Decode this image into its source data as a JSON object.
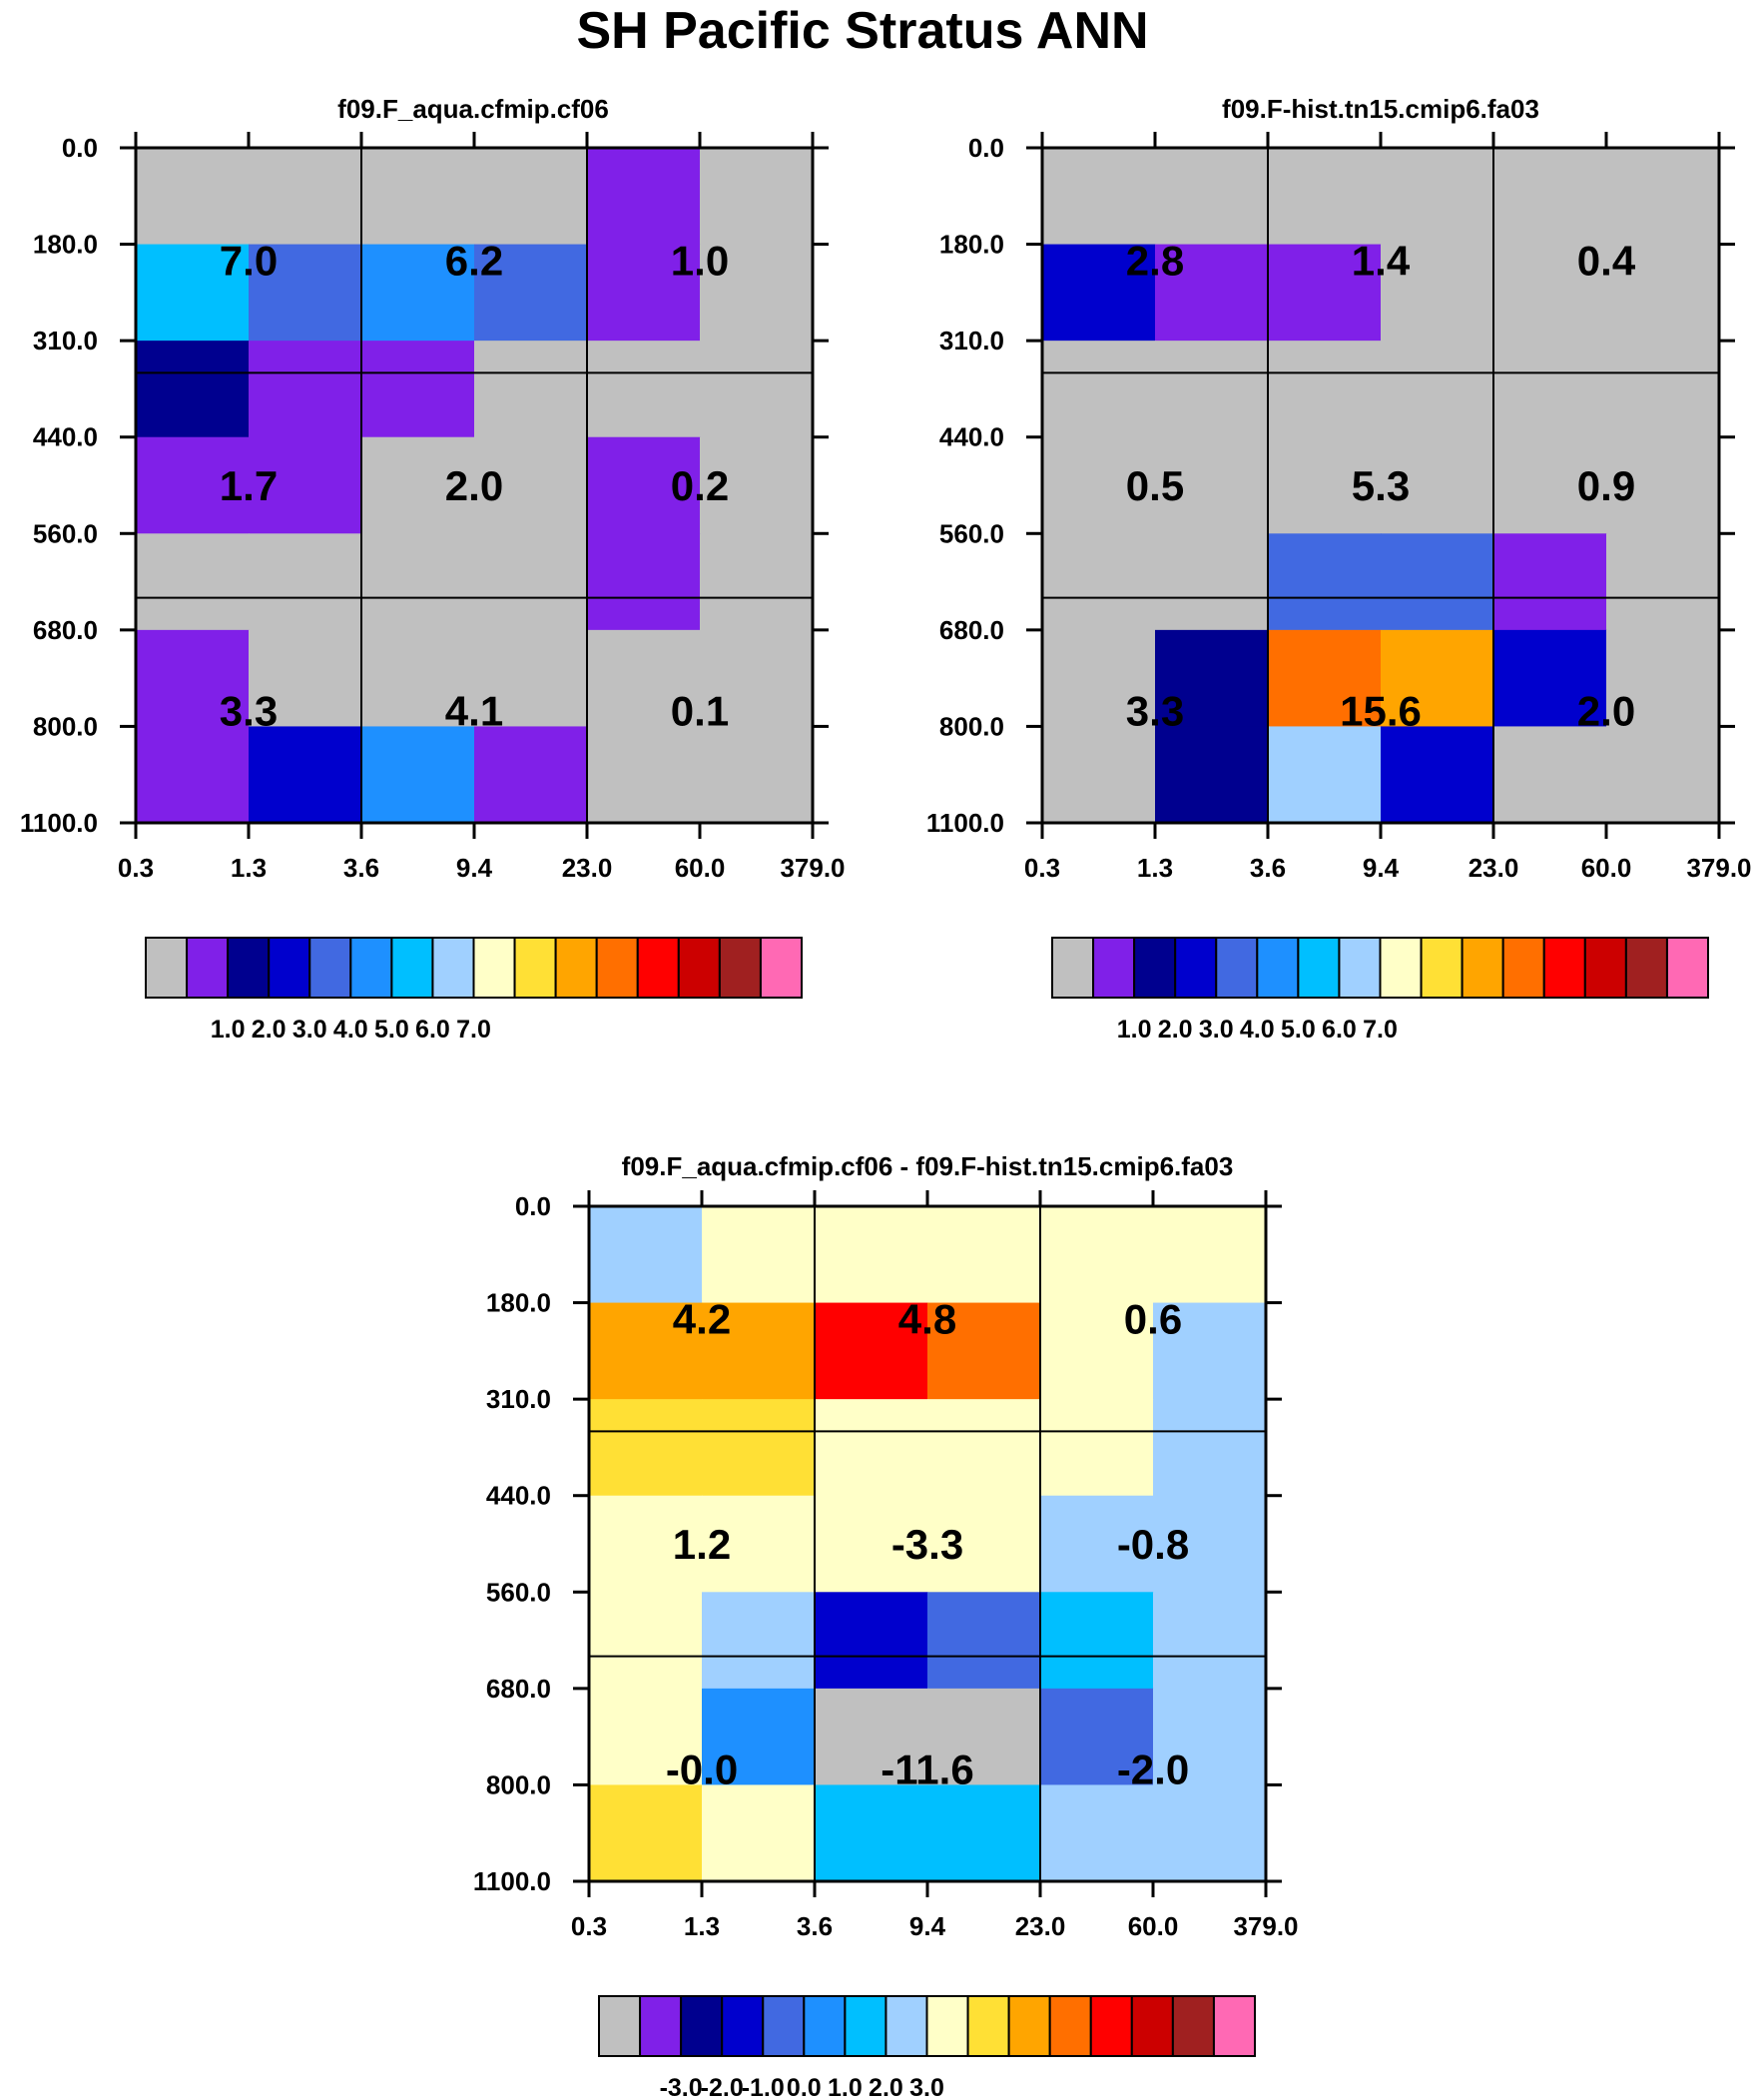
{
  "title": "SH Pacific Stratus ANN",
  "chart_data": [
    {
      "type": "heatmap",
      "title": "f09.F_aqua.cfmip.cf06",
      "x_ticks": [
        "0.3",
        "1.3",
        "3.6",
        "9.4",
        "23.0",
        "60.0",
        "379.0"
      ],
      "y_ticks": [
        "0.0",
        "180.0",
        "310.0",
        "440.0",
        "560.0",
        "680.0",
        "800.0",
        "1100.0"
      ],
      "color_index": [
        [
          0,
          0,
          0,
          0,
          1,
          0
        ],
        [
          6,
          4,
          5,
          4,
          1,
          0
        ],
        [
          2,
          1,
          1,
          0,
          0,
          0
        ],
        [
          1,
          1,
          0,
          0,
          1,
          0
        ],
        [
          0,
          0,
          0,
          0,
          1,
          0
        ],
        [
          1,
          0,
          0,
          0,
          0,
          0
        ],
        [
          1,
          3,
          5,
          1,
          0,
          0
        ]
      ],
      "box_values": [
        [
          "7.0",
          "6.2",
          "1.0"
        ],
        [
          "1.7",
          "2.0",
          "0.2"
        ],
        [
          "3.3",
          "4.1",
          "0.1"
        ]
      ]
    },
    {
      "type": "heatmap",
      "title": "f09.F-hist.tn15.cmip6.fa03",
      "x_ticks": [
        "0.3",
        "1.3",
        "3.6",
        "9.4",
        "23.0",
        "60.0",
        "379.0"
      ],
      "y_ticks": [
        "0.0",
        "180.0",
        "310.0",
        "440.0",
        "560.0",
        "680.0",
        "800.0",
        "1100.0"
      ],
      "color_index": [
        [
          0,
          0,
          0,
          0,
          0,
          0
        ],
        [
          3,
          1,
          1,
          0,
          0,
          0
        ],
        [
          0,
          0,
          0,
          0,
          0,
          0
        ],
        [
          0,
          0,
          0,
          0,
          0,
          0
        ],
        [
          0,
          0,
          4,
          4,
          1,
          0
        ],
        [
          0,
          2,
          11,
          10,
          3,
          0
        ],
        [
          0,
          2,
          7,
          3,
          0,
          0
        ]
      ],
      "box_values": [
        [
          "2.8",
          "1.4",
          "0.4"
        ],
        [
          "0.5",
          "5.3",
          "0.9"
        ],
        [
          "3.3",
          "15.6",
          "2.0"
        ]
      ]
    },
    {
      "type": "heatmap",
      "title": "f09.F_aqua.cfmip.cf06 - f09.F-hist.tn15.cmip6.fa03",
      "x_ticks": [
        "0.3",
        "1.3",
        "3.6",
        "9.4",
        "23.0",
        "60.0",
        "379.0"
      ],
      "y_ticks": [
        "0.0",
        "180.0",
        "310.0",
        "440.0",
        "560.0",
        "680.0",
        "800.0",
        "1100.0"
      ],
      "color_index": [
        [
          7,
          8,
          8,
          8,
          8,
          8
        ],
        [
          10,
          10,
          12,
          11,
          8,
          7
        ],
        [
          9,
          9,
          8,
          8,
          8,
          7
        ],
        [
          8,
          8,
          8,
          8,
          7,
          7
        ],
        [
          8,
          7,
          3,
          4,
          6,
          7
        ],
        [
          8,
          5,
          0,
          0,
          4,
          7
        ],
        [
          9,
          8,
          6,
          6,
          7,
          7
        ]
      ],
      "box_values": [
        [
          "4.2",
          "4.8",
          "0.6"
        ],
        [
          "1.2",
          "-3.3",
          "-0.8"
        ],
        [
          "-0.0",
          "-11.6",
          "-2.0"
        ]
      ]
    }
  ],
  "colorbar_colors": [
    "#c0c0c0",
    "#8020e8",
    "#00008f",
    "#0000cd",
    "#4169e1",
    "#1e90ff",
    "#00bfff",
    "#a0d0ff",
    "#ffffc8",
    "#ffe035",
    "#ffa500",
    "#ff6f00",
    "#ff0000",
    "#cc0000",
    "#a02020",
    "#ff69b4"
  ],
  "colorbars": [
    {
      "labels": [
        "1.0",
        "2.0",
        "3.0",
        "4.0",
        "5.0",
        "6.0",
        "7.0"
      ]
    },
    {
      "labels": [
        "1.0",
        "2.0",
        "3.0",
        "4.0",
        "5.0",
        "6.0",
        "7.0"
      ]
    },
    {
      "labels": [
        "-3.0",
        "-2.0",
        "-1.0",
        "0.0",
        "1.0",
        "2.0",
        "3.0"
      ]
    }
  ]
}
